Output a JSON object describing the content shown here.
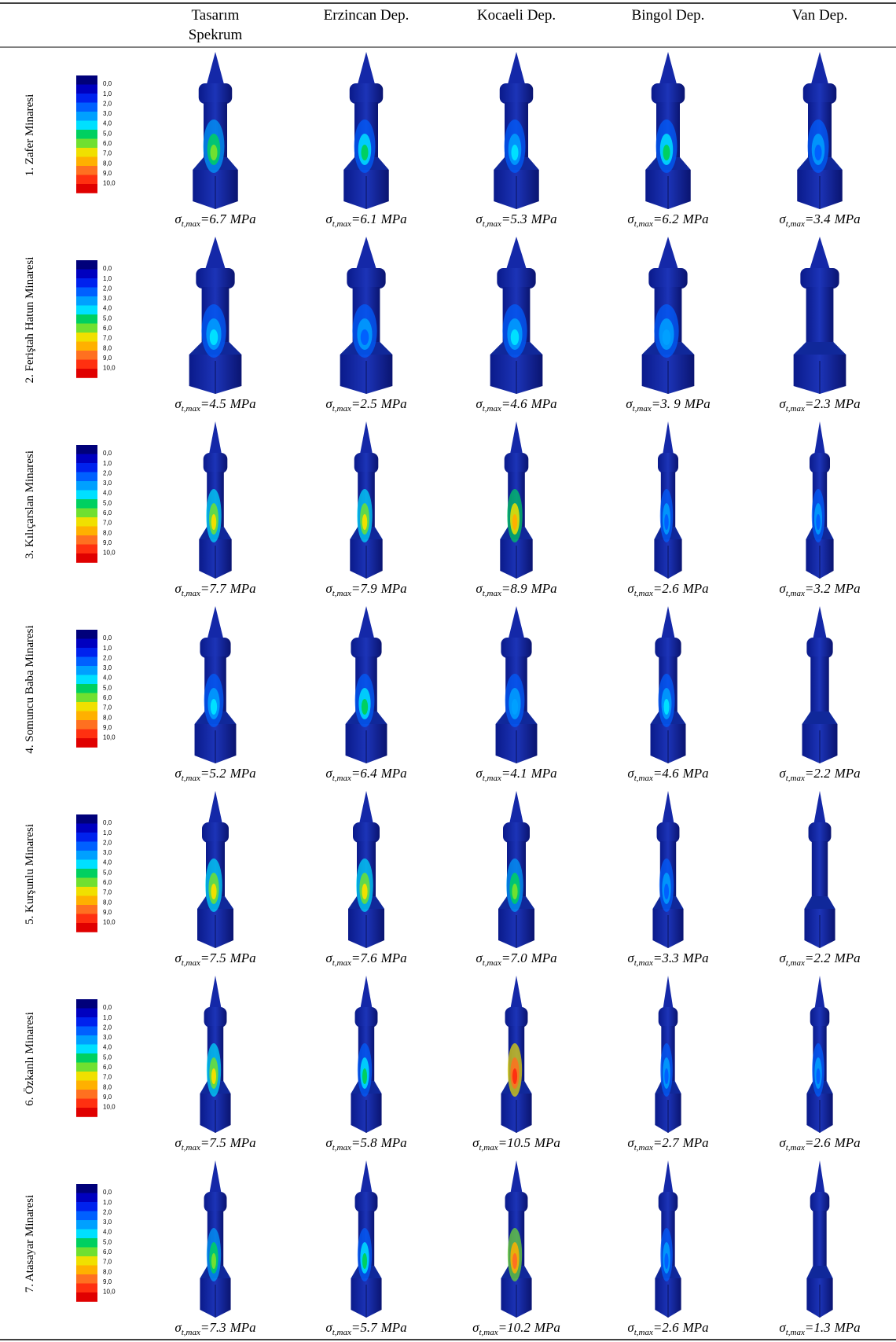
{
  "header": {
    "columns": [
      [
        "Tasarım",
        "Spekrum"
      ],
      [
        "Erzincan Dep."
      ],
      [
        "Kocaeli Dep."
      ],
      [
        "Bingol Dep."
      ],
      [
        "Van Dep."
      ]
    ]
  },
  "legend": {
    "labels": [
      "0,0",
      "1,0",
      "2,0",
      "3,0",
      "4,0",
      "5,0",
      "6,0",
      "7,0",
      "8,0",
      "9,0",
      "10,0"
    ],
    "colors": [
      "#00007a",
      "#0000c0",
      "#0022ee",
      "#0060ff",
      "#00a0ff",
      "#00e0ff",
      "#00d060",
      "#70e030",
      "#f0e000",
      "#ffb000",
      "#ff7020",
      "#ff3010",
      "#e00000"
    ]
  },
  "stress_label": {
    "symbol": "σ",
    "subscript": "t,max",
    "equals": "=",
    "unit": "MPa"
  },
  "rows": [
    {
      "name": "1. Zafer Minaresi",
      "values": [
        "6.7",
        "6.1",
        "5.3",
        "6.2",
        "3.4"
      ]
    },
    {
      "name": "2. Feriştah Hatun Minaresi",
      "values": [
        "4.5",
        "2.5",
        "4.6",
        "3. 9",
        "2.3"
      ]
    },
    {
      "name": "3. Kılıçarslan Minaresi",
      "values": [
        "7.7",
        "7.9",
        "8.9",
        "2.6",
        "3.2"
      ]
    },
    {
      "name": "4. Somuncu Baba Minaresi",
      "values": [
        "5.2",
        "6.4",
        "4.1",
        "4.6",
        "2.2"
      ]
    },
    {
      "name": "5. Kurşunlu Minaresi",
      "values": [
        "7.5",
        "7.6",
        "7.0",
        "3.3",
        "2.2"
      ]
    },
    {
      "name": "6. Özkanlı Minaresi",
      "values": [
        "7.5",
        "5.8",
        "10.5",
        "2.7",
        "2.6"
      ]
    },
    {
      "name": "7. Atasayar Minaresi",
      "values": [
        "7.3",
        "5.7",
        "10.2",
        "2.6",
        "1.3"
      ]
    }
  ]
}
